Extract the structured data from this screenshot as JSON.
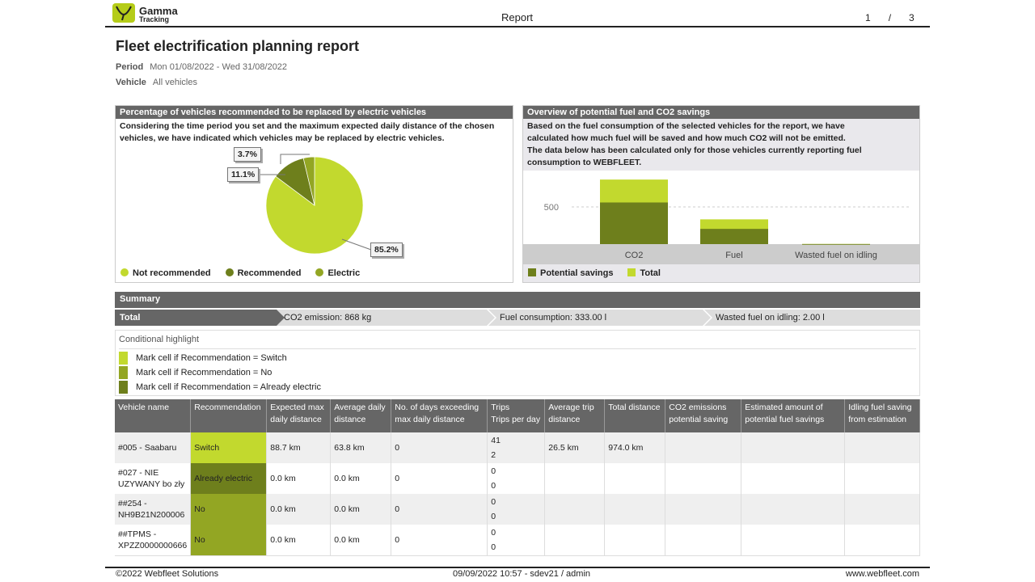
{
  "header": {
    "logo_line1": "Gamma",
    "logo_line2": "Tracking",
    "center": "Report",
    "page": "1",
    "sep": "/",
    "total_pages": "3"
  },
  "title": "Fleet electrification planning report",
  "period": {
    "label": "Period",
    "value": "Mon 01/08/2022 - Wed 31/08/2022"
  },
  "vehicle": {
    "label": "Vehicle",
    "value": "All vehicles"
  },
  "pie_panel": {
    "title": "Percentage of vehicles recommended to be replaced by electric vehicles",
    "desc": "Considering the time period you set and the maximum expected daily distance of the chosen vehicles, we have indicated which vehicles may be replaced by electric vehicles."
  },
  "bar_panel": {
    "title": "Overview of potential fuel and CO2 savings",
    "desc": "Based on the fuel consumption of the selected vehicles for the report, we have calculated how much fuel will be saved and how much CO2 will not be emitted. The data below has been calculated only for those vehicles currently reporting fuel consumption to WEBFLEET."
  },
  "chart_data": [
    {
      "type": "pie",
      "labels": [
        "Not recommended",
        "Recommended",
        "Electric"
      ],
      "values": [
        85.2,
        11.1,
        3.7
      ],
      "value_labels": [
        "85.2%",
        "11.1%",
        "3.7%"
      ],
      "colors": [
        "#c2d92e",
        "#6e7f1c",
        "#93a623"
      ],
      "legend": "bottom"
    },
    {
      "type": "bar",
      "stacked": "overlay",
      "categories": [
        "CO2",
        "Fuel",
        "Wasted fuel on idling"
      ],
      "series": [
        {
          "name": "Potential savings",
          "color": "#6e7f1c",
          "values": [
            560,
            205,
            1
          ]
        },
        {
          "name": "Total",
          "color": "#c2d92e",
          "values": [
            868,
            333,
            2
          ]
        }
      ],
      "yticks": [
        "500"
      ],
      "ytick_values": [
        500
      ],
      "ylim": [
        0,
        1000
      ],
      "legend": "bottom"
    }
  ],
  "summary": {
    "title": "Summary",
    "total": "Total",
    "co2": "CO2 emission: 868 kg",
    "fuel": "Fuel consumption: 333.00 l",
    "idle": "Wasted fuel on idling: 2.00 l"
  },
  "conditional": {
    "title": "Conditional highlight",
    "items": [
      {
        "label": "Mark cell if Recommendation = Switch",
        "color": "#c2d92e"
      },
      {
        "label": "Mark cell if Recommendation = No",
        "color": "#93a623"
      },
      {
        "label": "Mark cell if Recommendation = Already electric",
        "color": "#6e7f1c"
      }
    ]
  },
  "table": {
    "headers": [
      "Vehicle name",
      "Recommendation",
      "Expected max daily distance",
      "Average daily distance",
      "No. of days exceeding max daily distance",
      "Trips",
      "Trips per day",
      "Average trip distance",
      "Total distance",
      "CO2 emissions potential saving",
      "Estimated amount of potential fuel savings",
      "Idling fuel saving from estimation"
    ],
    "rows": [
      [
        "#005 - Saabaru",
        "Switch",
        "88.7 km",
        "63.8 km",
        "0",
        "41",
        "2",
        "26.5 km",
        "974.0 km",
        "",
        "",
        ""
      ],
      [
        "#027 - NIE UZYWANY bo zły",
        "Already electric",
        "0.0 km",
        "0.0 km",
        "0",
        "0",
        "0",
        "",
        "",
        "",
        "",
        ""
      ],
      [
        "##254 - NH9B21N200006",
        "No",
        "0.0 km",
        "0.0 km",
        "0",
        "0",
        "0",
        "",
        "",
        "",
        "",
        ""
      ],
      [
        "##TPMS - XPZZ0000000666",
        "No",
        "0.0 km",
        "0.0 km",
        "0",
        "0",
        "0",
        "",
        "",
        "",
        "",
        ""
      ]
    ]
  },
  "footer": {
    "left": "©2022 Webfleet Solutions",
    "center": "09/09/2022 10:57 - sdev21 / admin",
    "right": "www.webfleet.com"
  }
}
